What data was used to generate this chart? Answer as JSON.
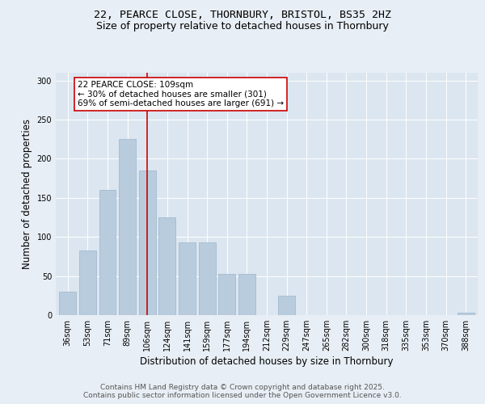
{
  "title_line1": "22, PEARCE CLOSE, THORNBURY, BRISTOL, BS35 2HZ",
  "title_line2": "Size of property relative to detached houses in Thornbury",
  "xlabel": "Distribution of detached houses by size in Thornbury",
  "ylabel": "Number of detached properties",
  "categories": [
    "36sqm",
    "53sqm",
    "71sqm",
    "89sqm",
    "106sqm",
    "124sqm",
    "141sqm",
    "159sqm",
    "177sqm",
    "194sqm",
    "212sqm",
    "229sqm",
    "247sqm",
    "265sqm",
    "282sqm",
    "300sqm",
    "318sqm",
    "335sqm",
    "353sqm",
    "370sqm",
    "388sqm"
  ],
  "values": [
    30,
    83,
    160,
    225,
    185,
    125,
    93,
    93,
    53,
    53,
    0,
    25,
    0,
    0,
    0,
    0,
    0,
    0,
    0,
    0,
    3
  ],
  "bar_color": "#b8ccde",
  "bar_edge_color": "#9ab5cd",
  "vline_index": 4,
  "vline_color": "#cc0000",
  "annotation_text": "22 PEARCE CLOSE: 109sqm\n← 30% of detached houses are smaller (301)\n69% of semi-detached houses are larger (691) →",
  "annotation_box_color": "#ffffff",
  "annotation_box_edge": "#cc0000",
  "ylim": [
    0,
    310
  ],
  "yticks": [
    0,
    50,
    100,
    150,
    200,
    250,
    300
  ],
  "bg_color": "#e8eef5",
  "plot_bg_color": "#dce6f0",
  "footer_line1": "Contains HM Land Registry data © Crown copyright and database right 2025.",
  "footer_line2": "Contains public sector information licensed under the Open Government Licence v3.0.",
  "title_fontsize": 9.5,
  "subtitle_fontsize": 9,
  "axis_label_fontsize": 8.5,
  "tick_fontsize": 7,
  "annotation_fontsize": 7.5,
  "footer_fontsize": 6.5
}
